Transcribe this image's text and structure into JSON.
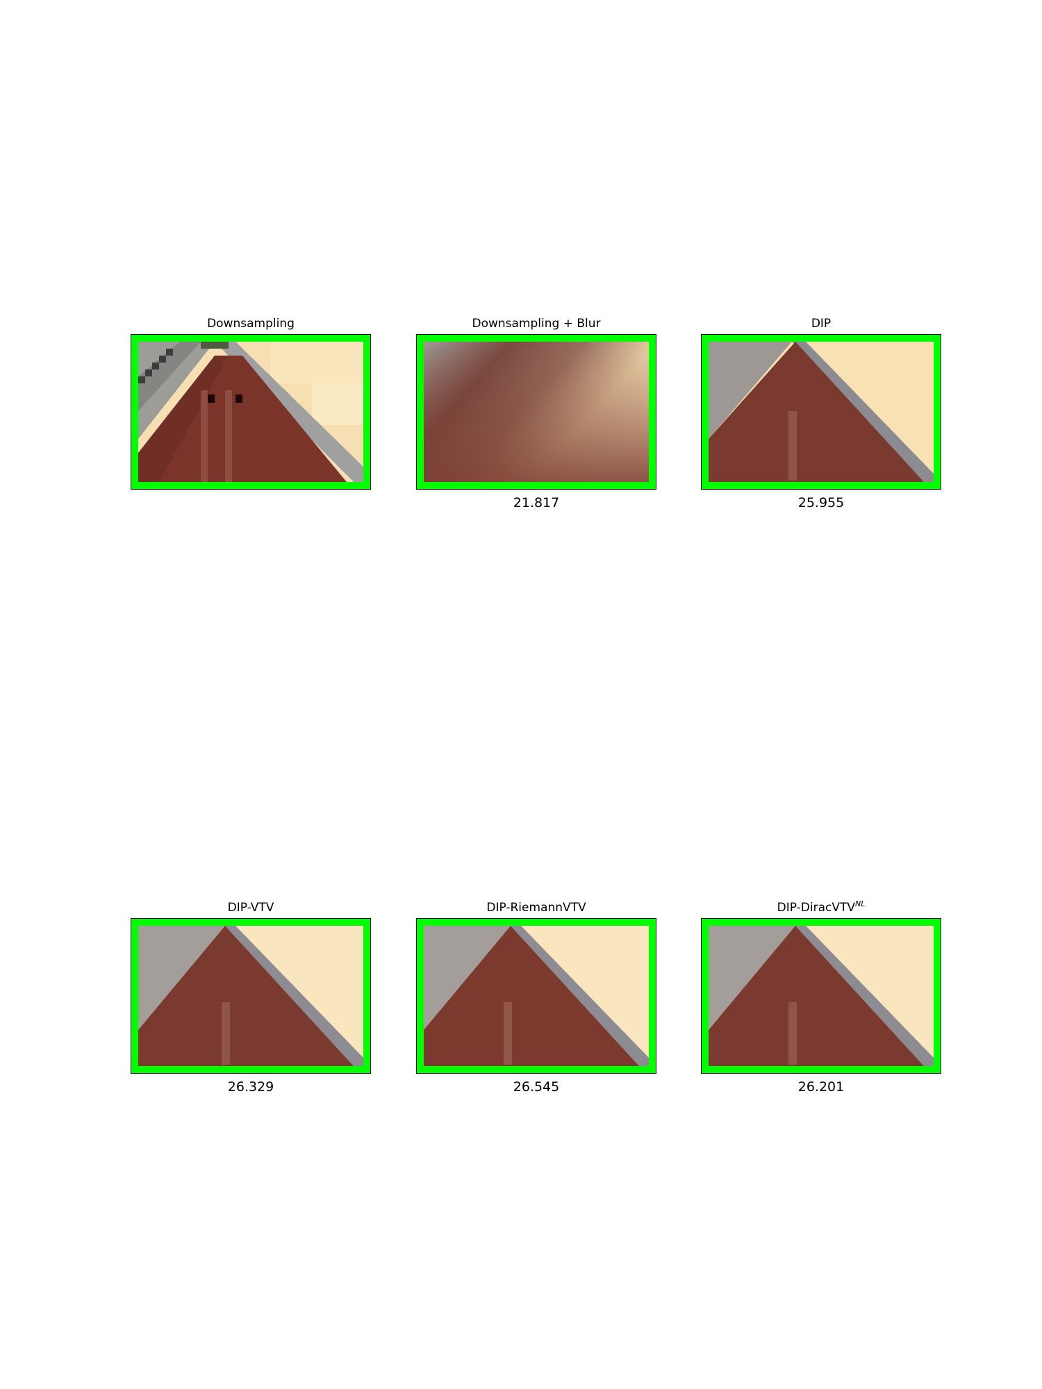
{
  "panels": [
    {
      "title": "Downsampling",
      "psnr": null,
      "style": "pixelated"
    },
    {
      "title": "Downsampling + Blur",
      "psnr": "21.817",
      "style": "blurred"
    },
    {
      "title": "DIP",
      "psnr": "25.955",
      "style": "restored"
    },
    {
      "title": "DIP-VTV",
      "psnr": "26.329",
      "style": "restored"
    },
    {
      "title": "DIP-RiemannVTV",
      "psnr": "26.545",
      "style": "restored"
    },
    {
      "title": "DIP-DiracVTV",
      "title_superscript": "NL",
      "psnr": "26.201",
      "style": "restored"
    }
  ],
  "colors": {
    "highlight_border": "#00ff00",
    "sky": "#f8e0b0",
    "roof": "#8c8c8c",
    "wall": "#7a3328"
  }
}
